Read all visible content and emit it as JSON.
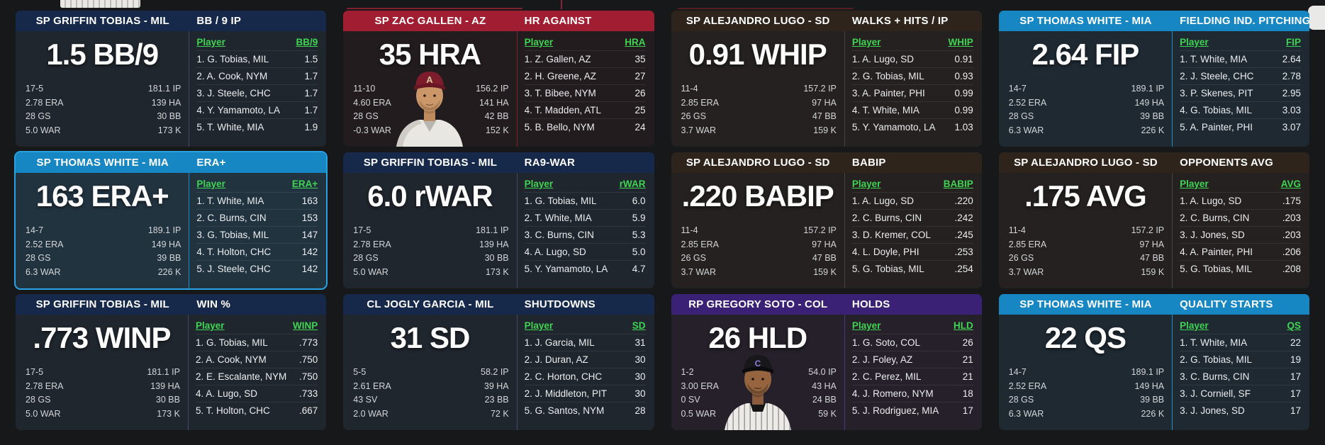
{
  "screen": {
    "background": "#17181a",
    "accent_green": "#3fd452",
    "selected_border": "#2ba2e2",
    "team_colors": {
      "MIL": "#16294b",
      "AZ": "#a11d32",
      "SD": "#2e241b",
      "MIA": "#1787c3",
      "COL": "#3a2176"
    }
  },
  "panels": [
    {
      "team": "MIL",
      "selected": false,
      "photo": null,
      "header": {
        "player": "SP GRIFFIN TOBIAS - MIL",
        "category": "BB / 9 IP"
      },
      "big_stat": "1.5 BB/9",
      "stats_left": [
        "17-5",
        "2.78 ERA",
        "28 GS",
        "5.0 WAR"
      ],
      "stats_right": [
        "181.1 IP",
        "139 HA",
        "30 BB",
        "173 K"
      ],
      "table": {
        "player_label": "Player",
        "stat_label": "BB/9",
        "rows": [
          {
            "player": "1. G. Tobias, MIL",
            "value": "1.5"
          },
          {
            "player": "2. A. Cook, NYM",
            "value": "1.7"
          },
          {
            "player": "3. J. Steele, CHC",
            "value": "1.7"
          },
          {
            "player": "4. Y. Yamamoto, LA",
            "value": "1.7"
          },
          {
            "player": "5. T. White, MIA",
            "value": "1.9"
          }
        ]
      }
    },
    {
      "team": "AZ",
      "selected": false,
      "photo": "az-cap-portrait",
      "header": {
        "player": "SP ZAC GALLEN - AZ",
        "category": "HR AGAINST"
      },
      "big_stat": "35 HRA",
      "stats_left": [
        "11-10",
        "4.60 ERA",
        "28 GS",
        "-0.3 WAR"
      ],
      "stats_right": [
        "156.2 IP",
        "141 HA",
        "42 BB",
        "152 K"
      ],
      "table": {
        "player_label": "Player",
        "stat_label": "HRA",
        "rows": [
          {
            "player": "1. Z. Gallen, AZ",
            "value": "35"
          },
          {
            "player": "2. H. Greene, AZ",
            "value": "27"
          },
          {
            "player": "3. T. Bibee, NYM",
            "value": "26"
          },
          {
            "player": "4. T. Madden, ATL",
            "value": "25"
          },
          {
            "player": "5. B. Bello, NYM",
            "value": "24"
          }
        ]
      }
    },
    {
      "team": "SD",
      "selected": false,
      "photo": null,
      "header": {
        "player": "SP ALEJANDRO LUGO - SD",
        "category": "WALKS + HITS / IP"
      },
      "big_stat": "0.91 WHIP",
      "stats_left": [
        "11-4",
        "2.85 ERA",
        "26 GS",
        "3.7 WAR"
      ],
      "stats_right": [
        "157.2 IP",
        "97 HA",
        "47 BB",
        "159 K"
      ],
      "table": {
        "player_label": "Player",
        "stat_label": "WHIP",
        "rows": [
          {
            "player": "1. A. Lugo, SD",
            "value": "0.91"
          },
          {
            "player": "2. G. Tobias, MIL",
            "value": "0.93"
          },
          {
            "player": "3. A. Painter, PHI",
            "value": "0.99"
          },
          {
            "player": "4. T. White, MIA",
            "value": "0.99"
          },
          {
            "player": "5. Y. Yamamoto, LA",
            "value": "1.03"
          }
        ]
      }
    },
    {
      "team": "MIA",
      "selected": false,
      "photo": null,
      "header": {
        "player": "SP THOMAS WHITE - MIA",
        "category": "FIELDING IND. PITCHING"
      },
      "big_stat": "2.64 FIP",
      "stats_left": [
        "14-7",
        "2.52 ERA",
        "28 GS",
        "6.3 WAR"
      ],
      "stats_right": [
        "189.1 IP",
        "149 HA",
        "39 BB",
        "226 K"
      ],
      "table": {
        "player_label": "Player",
        "stat_label": "FIP",
        "rows": [
          {
            "player": "1. T. White, MIA",
            "value": "2.64"
          },
          {
            "player": "2. J. Steele, CHC",
            "value": "2.78"
          },
          {
            "player": "3. P. Skenes, PIT",
            "value": "2.95"
          },
          {
            "player": "4. G. Tobias, MIL",
            "value": "3.03"
          },
          {
            "player": "5. A. Painter, PHI",
            "value": "3.07"
          }
        ]
      }
    },
    {
      "team": "MIA",
      "selected": true,
      "photo": null,
      "header": {
        "player": "SP THOMAS WHITE - MIA",
        "category": "ERA+"
      },
      "big_stat": "163 ERA+",
      "stats_left": [
        "14-7",
        "2.52 ERA",
        "28 GS",
        "6.3 WAR"
      ],
      "stats_right": [
        "189.1 IP",
        "149 HA",
        "39 BB",
        "226 K"
      ],
      "table": {
        "player_label": "Player",
        "stat_label": "ERA+",
        "rows": [
          {
            "player": "1. T. White, MIA",
            "value": "163"
          },
          {
            "player": "2. C. Burns, CIN",
            "value": "153"
          },
          {
            "player": "3. G. Tobias, MIL",
            "value": "147"
          },
          {
            "player": "4. T. Holton, CHC",
            "value": "142"
          },
          {
            "player": "5. J. Steele, CHC",
            "value": "142"
          }
        ]
      }
    },
    {
      "team": "MIL",
      "selected": false,
      "photo": null,
      "header": {
        "player": "SP GRIFFIN TOBIAS - MIL",
        "category": "RA9-WAR"
      },
      "big_stat": "6.0 rWAR",
      "stats_left": [
        "17-5",
        "2.78 ERA",
        "28 GS",
        "5.0 WAR"
      ],
      "stats_right": [
        "181.1 IP",
        "139 HA",
        "30 BB",
        "173 K"
      ],
      "table": {
        "player_label": "Player",
        "stat_label": "rWAR",
        "rows": [
          {
            "player": "1. G. Tobias, MIL",
            "value": "6.0"
          },
          {
            "player": "2. T. White, MIA",
            "value": "5.9"
          },
          {
            "player": "3. C. Burns, CIN",
            "value": "5.3"
          },
          {
            "player": "4. A. Lugo, SD",
            "value": "5.0"
          },
          {
            "player": "5. Y. Yamamoto, LA",
            "value": "4.7"
          }
        ]
      }
    },
    {
      "team": "SD",
      "selected": false,
      "photo": null,
      "header": {
        "player": "SP ALEJANDRO LUGO - SD",
        "category": "BABIP"
      },
      "big_stat": ".220 BABIP",
      "stats_left": [
        "11-4",
        "2.85 ERA",
        "26 GS",
        "3.7 WAR"
      ],
      "stats_right": [
        "157.2 IP",
        "97 HA",
        "47 BB",
        "159 K"
      ],
      "table": {
        "player_label": "Player",
        "stat_label": "BABIP",
        "rows": [
          {
            "player": "1. A. Lugo, SD",
            "value": ".220"
          },
          {
            "player": "2. C. Burns, CIN",
            "value": ".242"
          },
          {
            "player": "3. D. Kremer, COL",
            "value": ".245"
          },
          {
            "player": "4. L. Doyle, PHI",
            "value": ".253"
          },
          {
            "player": "5. G. Tobias, MIL",
            "value": ".254"
          }
        ]
      }
    },
    {
      "team": "SD",
      "selected": false,
      "photo": null,
      "header": {
        "player": "SP ALEJANDRO LUGO - SD",
        "category": "OPPONENTS AVG"
      },
      "big_stat": ".175 AVG",
      "stats_left": [
        "11-4",
        "2.85 ERA",
        "26 GS",
        "3.7 WAR"
      ],
      "stats_right": [
        "157.2 IP",
        "97 HA",
        "47 BB",
        "159 K"
      ],
      "table": {
        "player_label": "Player",
        "stat_label": "AVG",
        "rows": [
          {
            "player": "1. A. Lugo, SD",
            "value": ".175"
          },
          {
            "player": "2. C. Burns, CIN",
            "value": ".203"
          },
          {
            "player": "3. J. Jones, SD",
            "value": ".203"
          },
          {
            "player": "4. A. Painter, PHI",
            "value": ".206"
          },
          {
            "player": "5. G. Tobias, MIL",
            "value": ".208"
          }
        ]
      }
    },
    {
      "team": "MIL",
      "selected": false,
      "photo": null,
      "header": {
        "player": "SP GRIFFIN TOBIAS - MIL",
        "category": "WIN %"
      },
      "big_stat": ".773 WINP",
      "stats_left": [
        "17-5",
        "2.78 ERA",
        "28 GS",
        "5.0 WAR"
      ],
      "stats_right": [
        "181.1 IP",
        "139 HA",
        "30 BB",
        "173 K"
      ],
      "table": {
        "player_label": "Player",
        "stat_label": "WINP",
        "rows": [
          {
            "player": "1. G. Tobias, MIL",
            "value": ".773"
          },
          {
            "player": "2. A. Cook, NYM",
            "value": ".750"
          },
          {
            "player": "2. E. Escalante, NYM",
            "value": ".750"
          },
          {
            "player": "4. A. Lugo, SD",
            "value": ".733"
          },
          {
            "player": "5. T. Holton, CHC",
            "value": ".667"
          }
        ]
      }
    },
    {
      "team": "MIL",
      "selected": false,
      "photo": null,
      "header": {
        "player": "CL JOGLY GARCIA - MIL",
        "category": "SHUTDOWNS"
      },
      "big_stat": "31 SD",
      "stats_left": [
        "5-5",
        "2.61 ERA",
        "43 SV",
        "2.0 WAR"
      ],
      "stats_right": [
        "58.2 IP",
        "39 HA",
        "23 BB",
        "72 K"
      ],
      "table": {
        "player_label": "Player",
        "stat_label": "SD",
        "rows": [
          {
            "player": "1. J. Garcia, MIL",
            "value": "31"
          },
          {
            "player": "2. J. Duran, AZ",
            "value": "30"
          },
          {
            "player": "2. C. Horton, CHC",
            "value": "30"
          },
          {
            "player": "2. J. Middleton, PIT",
            "value": "30"
          },
          {
            "player": "5. G. Santos, NYM",
            "value": "28"
          }
        ]
      }
    },
    {
      "team": "COL",
      "selected": false,
      "photo": "col-cap-portrait",
      "header": {
        "player": "RP GREGORY SOTO - COL",
        "category": "HOLDS"
      },
      "big_stat": "26 HLD",
      "stats_left": [
        "1-2",
        "3.00 ERA",
        "0 SV",
        "0.5 WAR"
      ],
      "stats_right": [
        "54.0 IP",
        "43 HA",
        "24 BB",
        "59 K"
      ],
      "table": {
        "player_label": "Player",
        "stat_label": "HLD",
        "rows": [
          {
            "player": "1. G. Soto, COL",
            "value": "26"
          },
          {
            "player": "2. J. Foley, AZ",
            "value": "21"
          },
          {
            "player": "2. C. Perez, MIL",
            "value": "21"
          },
          {
            "player": "4. J. Romero, NYM",
            "value": "18"
          },
          {
            "player": "5. J. Rodriguez, MIA",
            "value": "17"
          }
        ]
      }
    },
    {
      "team": "MIA",
      "selected": false,
      "photo": null,
      "header": {
        "player": "SP THOMAS WHITE - MIA",
        "category": "QUALITY STARTS"
      },
      "big_stat": "22 QS",
      "stats_left": [
        "14-7",
        "2.52 ERA",
        "28 GS",
        "6.3 WAR"
      ],
      "stats_right": [
        "189.1 IP",
        "149 HA",
        "39 BB",
        "226 K"
      ],
      "table": {
        "player_label": "Player",
        "stat_label": "QS",
        "rows": [
          {
            "player": "1. T. White, MIA",
            "value": "22"
          },
          {
            "player": "2. G. Tobias, MIL",
            "value": "19"
          },
          {
            "player": "3. C. Burns, CIN",
            "value": "17"
          },
          {
            "player": "3. J. Corniell, SF",
            "value": "17"
          },
          {
            "player": "3. J. Jones, SD",
            "value": "17"
          }
        ]
      }
    }
  ]
}
